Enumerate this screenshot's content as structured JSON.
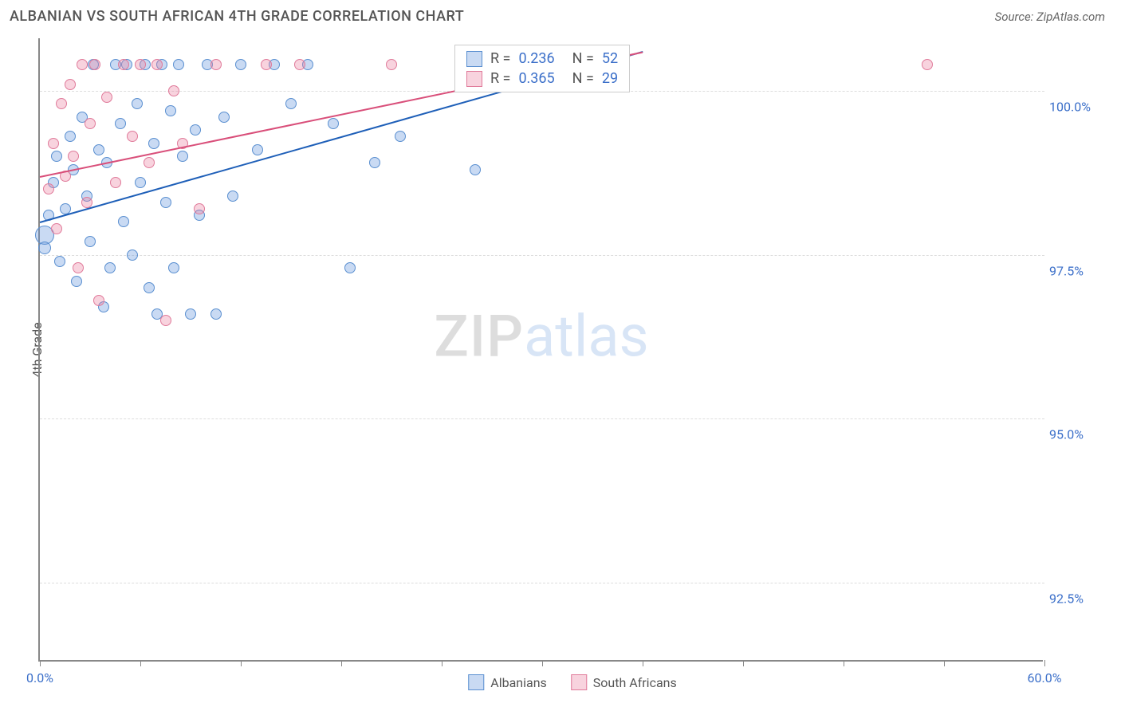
{
  "header": {
    "title": "ALBANIAN VS SOUTH AFRICAN 4TH GRADE CORRELATION CHART",
    "source_prefix": "Source: ",
    "source_name": "ZipAtlas.com"
  },
  "chart": {
    "type": "scatter",
    "ylabel": "4th Grade",
    "background_color": "#ffffff",
    "grid_color": "#dddddd",
    "axis_color": "#888888",
    "xlim": [
      0,
      60
    ],
    "ylim": [
      91.3,
      100.8
    ],
    "xtick_positions": [
      0,
      6,
      12,
      18,
      24,
      30,
      36,
      42,
      48,
      54,
      60
    ],
    "xtick_labels": {
      "0": "0.0%",
      "60": "60.0%"
    },
    "ytick_positions": [
      92.5,
      95.0,
      97.5,
      100.0
    ],
    "ytick_labels": [
      "92.5%",
      "95.0%",
      "97.5%",
      "100.0%"
    ],
    "tick_label_color": "#3b6fc9",
    "tick_label_fontsize": 16,
    "watermark": {
      "zip": "ZIP",
      "atlas": "atlas"
    },
    "series": [
      {
        "name": "Albanians",
        "color_fill": "rgba(100,150,220,0.35)",
        "color_stroke": "#5a8fd0",
        "trend_color": "#1e5fb8",
        "stats": {
          "r": "0.236",
          "n": "52"
        },
        "trend": {
          "x1": 0,
          "y1": 98.0,
          "x2": 36,
          "y2": 100.6
        },
        "points": [
          {
            "x": 0.3,
            "y": 97.8,
            "r": 12
          },
          {
            "x": 0.3,
            "y": 97.6,
            "r": 8
          },
          {
            "x": 0.5,
            "y": 98.1,
            "r": 7
          },
          {
            "x": 0.8,
            "y": 98.6,
            "r": 7
          },
          {
            "x": 1.0,
            "y": 99.0,
            "r": 7
          },
          {
            "x": 1.2,
            "y": 97.4,
            "r": 7
          },
          {
            "x": 1.5,
            "y": 98.2,
            "r": 7
          },
          {
            "x": 1.8,
            "y": 99.3,
            "r": 7
          },
          {
            "x": 2.0,
            "y": 98.8,
            "r": 7
          },
          {
            "x": 2.2,
            "y": 97.1,
            "r": 7
          },
          {
            "x": 2.5,
            "y": 99.6,
            "r": 7
          },
          {
            "x": 2.8,
            "y": 98.4,
            "r": 7
          },
          {
            "x": 3.0,
            "y": 97.7,
            "r": 7
          },
          {
            "x": 3.2,
            "y": 100.4,
            "r": 7
          },
          {
            "x": 3.5,
            "y": 99.1,
            "r": 7
          },
          {
            "x": 3.8,
            "y": 96.7,
            "r": 7
          },
          {
            "x": 4.0,
            "y": 98.9,
            "r": 7
          },
          {
            "x": 4.2,
            "y": 97.3,
            "r": 7
          },
          {
            "x": 4.5,
            "y": 100.4,
            "r": 7
          },
          {
            "x": 4.8,
            "y": 99.5,
            "r": 7
          },
          {
            "x": 5.0,
            "y": 98.0,
            "r": 7
          },
          {
            "x": 5.2,
            "y": 100.4,
            "r": 7
          },
          {
            "x": 5.5,
            "y": 97.5,
            "r": 7
          },
          {
            "x": 5.8,
            "y": 99.8,
            "r": 7
          },
          {
            "x": 6.0,
            "y": 98.6,
            "r": 7
          },
          {
            "x": 6.3,
            "y": 100.4,
            "r": 7
          },
          {
            "x": 6.5,
            "y": 97.0,
            "r": 7
          },
          {
            "x": 6.8,
            "y": 99.2,
            "r": 7
          },
          {
            "x": 7.0,
            "y": 96.6,
            "r": 7
          },
          {
            "x": 7.3,
            "y": 100.4,
            "r": 7
          },
          {
            "x": 7.5,
            "y": 98.3,
            "r": 7
          },
          {
            "x": 7.8,
            "y": 99.7,
            "r": 7
          },
          {
            "x": 8.0,
            "y": 97.3,
            "r": 7
          },
          {
            "x": 8.3,
            "y": 100.4,
            "r": 7
          },
          {
            "x": 8.5,
            "y": 99.0,
            "r": 7
          },
          {
            "x": 9.0,
            "y": 96.6,
            "r": 7
          },
          {
            "x": 9.3,
            "y": 99.4,
            "r": 7
          },
          {
            "x": 9.5,
            "y": 98.1,
            "r": 7
          },
          {
            "x": 10.0,
            "y": 100.4,
            "r": 7
          },
          {
            "x": 10.5,
            "y": 96.6,
            "r": 7
          },
          {
            "x": 11.0,
            "y": 99.6,
            "r": 7
          },
          {
            "x": 11.5,
            "y": 98.4,
            "r": 7
          },
          {
            "x": 12.0,
            "y": 100.4,
            "r": 7
          },
          {
            "x": 13.0,
            "y": 99.1,
            "r": 7
          },
          {
            "x": 14.0,
            "y": 100.4,
            "r": 7
          },
          {
            "x": 15.0,
            "y": 99.8,
            "r": 7
          },
          {
            "x": 16.0,
            "y": 100.4,
            "r": 7
          },
          {
            "x": 17.5,
            "y": 99.5,
            "r": 7
          },
          {
            "x": 18.5,
            "y": 97.3,
            "r": 7
          },
          {
            "x": 20.0,
            "y": 98.9,
            "r": 7
          },
          {
            "x": 21.5,
            "y": 99.3,
            "r": 7
          },
          {
            "x": 26.0,
            "y": 98.8,
            "r": 7
          }
        ]
      },
      {
        "name": "South Africans",
        "color_fill": "rgba(235,130,160,0.35)",
        "color_stroke": "#e07a9a",
        "trend_color": "#d94f7a",
        "stats": {
          "r": "0.365",
          "n": "29"
        },
        "trend": {
          "x1": 0,
          "y1": 98.7,
          "x2": 36,
          "y2": 100.6
        },
        "points": [
          {
            "x": 0.5,
            "y": 98.5,
            "r": 7
          },
          {
            "x": 0.8,
            "y": 99.2,
            "r": 7
          },
          {
            "x": 1.0,
            "y": 97.9,
            "r": 7
          },
          {
            "x": 1.3,
            "y": 99.8,
            "r": 7
          },
          {
            "x": 1.5,
            "y": 98.7,
            "r": 7
          },
          {
            "x": 1.8,
            "y": 100.1,
            "r": 7
          },
          {
            "x": 2.0,
            "y": 99.0,
            "r": 7
          },
          {
            "x": 2.3,
            "y": 97.3,
            "r": 7
          },
          {
            "x": 2.5,
            "y": 100.4,
            "r": 7
          },
          {
            "x": 2.8,
            "y": 98.3,
            "r": 7
          },
          {
            "x": 3.0,
            "y": 99.5,
            "r": 7
          },
          {
            "x": 3.3,
            "y": 100.4,
            "r": 7
          },
          {
            "x": 3.5,
            "y": 96.8,
            "r": 7
          },
          {
            "x": 4.0,
            "y": 99.9,
            "r": 7
          },
          {
            "x": 4.5,
            "y": 98.6,
            "r": 7
          },
          {
            "x": 5.0,
            "y": 100.4,
            "r": 7
          },
          {
            "x": 5.5,
            "y": 99.3,
            "r": 7
          },
          {
            "x": 6.0,
            "y": 100.4,
            "r": 7
          },
          {
            "x": 6.5,
            "y": 98.9,
            "r": 7
          },
          {
            "x": 7.0,
            "y": 100.4,
            "r": 7
          },
          {
            "x": 7.5,
            "y": 96.5,
            "r": 7
          },
          {
            "x": 8.0,
            "y": 100.0,
            "r": 7
          },
          {
            "x": 8.5,
            "y": 99.2,
            "r": 7
          },
          {
            "x": 9.5,
            "y": 98.2,
            "r": 7
          },
          {
            "x": 10.5,
            "y": 100.4,
            "r": 7
          },
          {
            "x": 13.5,
            "y": 100.4,
            "r": 7
          },
          {
            "x": 15.5,
            "y": 100.4,
            "r": 7
          },
          {
            "x": 21.0,
            "y": 100.4,
            "r": 7
          },
          {
            "x": 53.0,
            "y": 100.4,
            "r": 7
          }
        ]
      }
    ]
  },
  "legend": {
    "series1": "Albanians",
    "series2": "South Africans"
  },
  "stats_box": {
    "r_label": "R =",
    "n_label": "N ="
  }
}
